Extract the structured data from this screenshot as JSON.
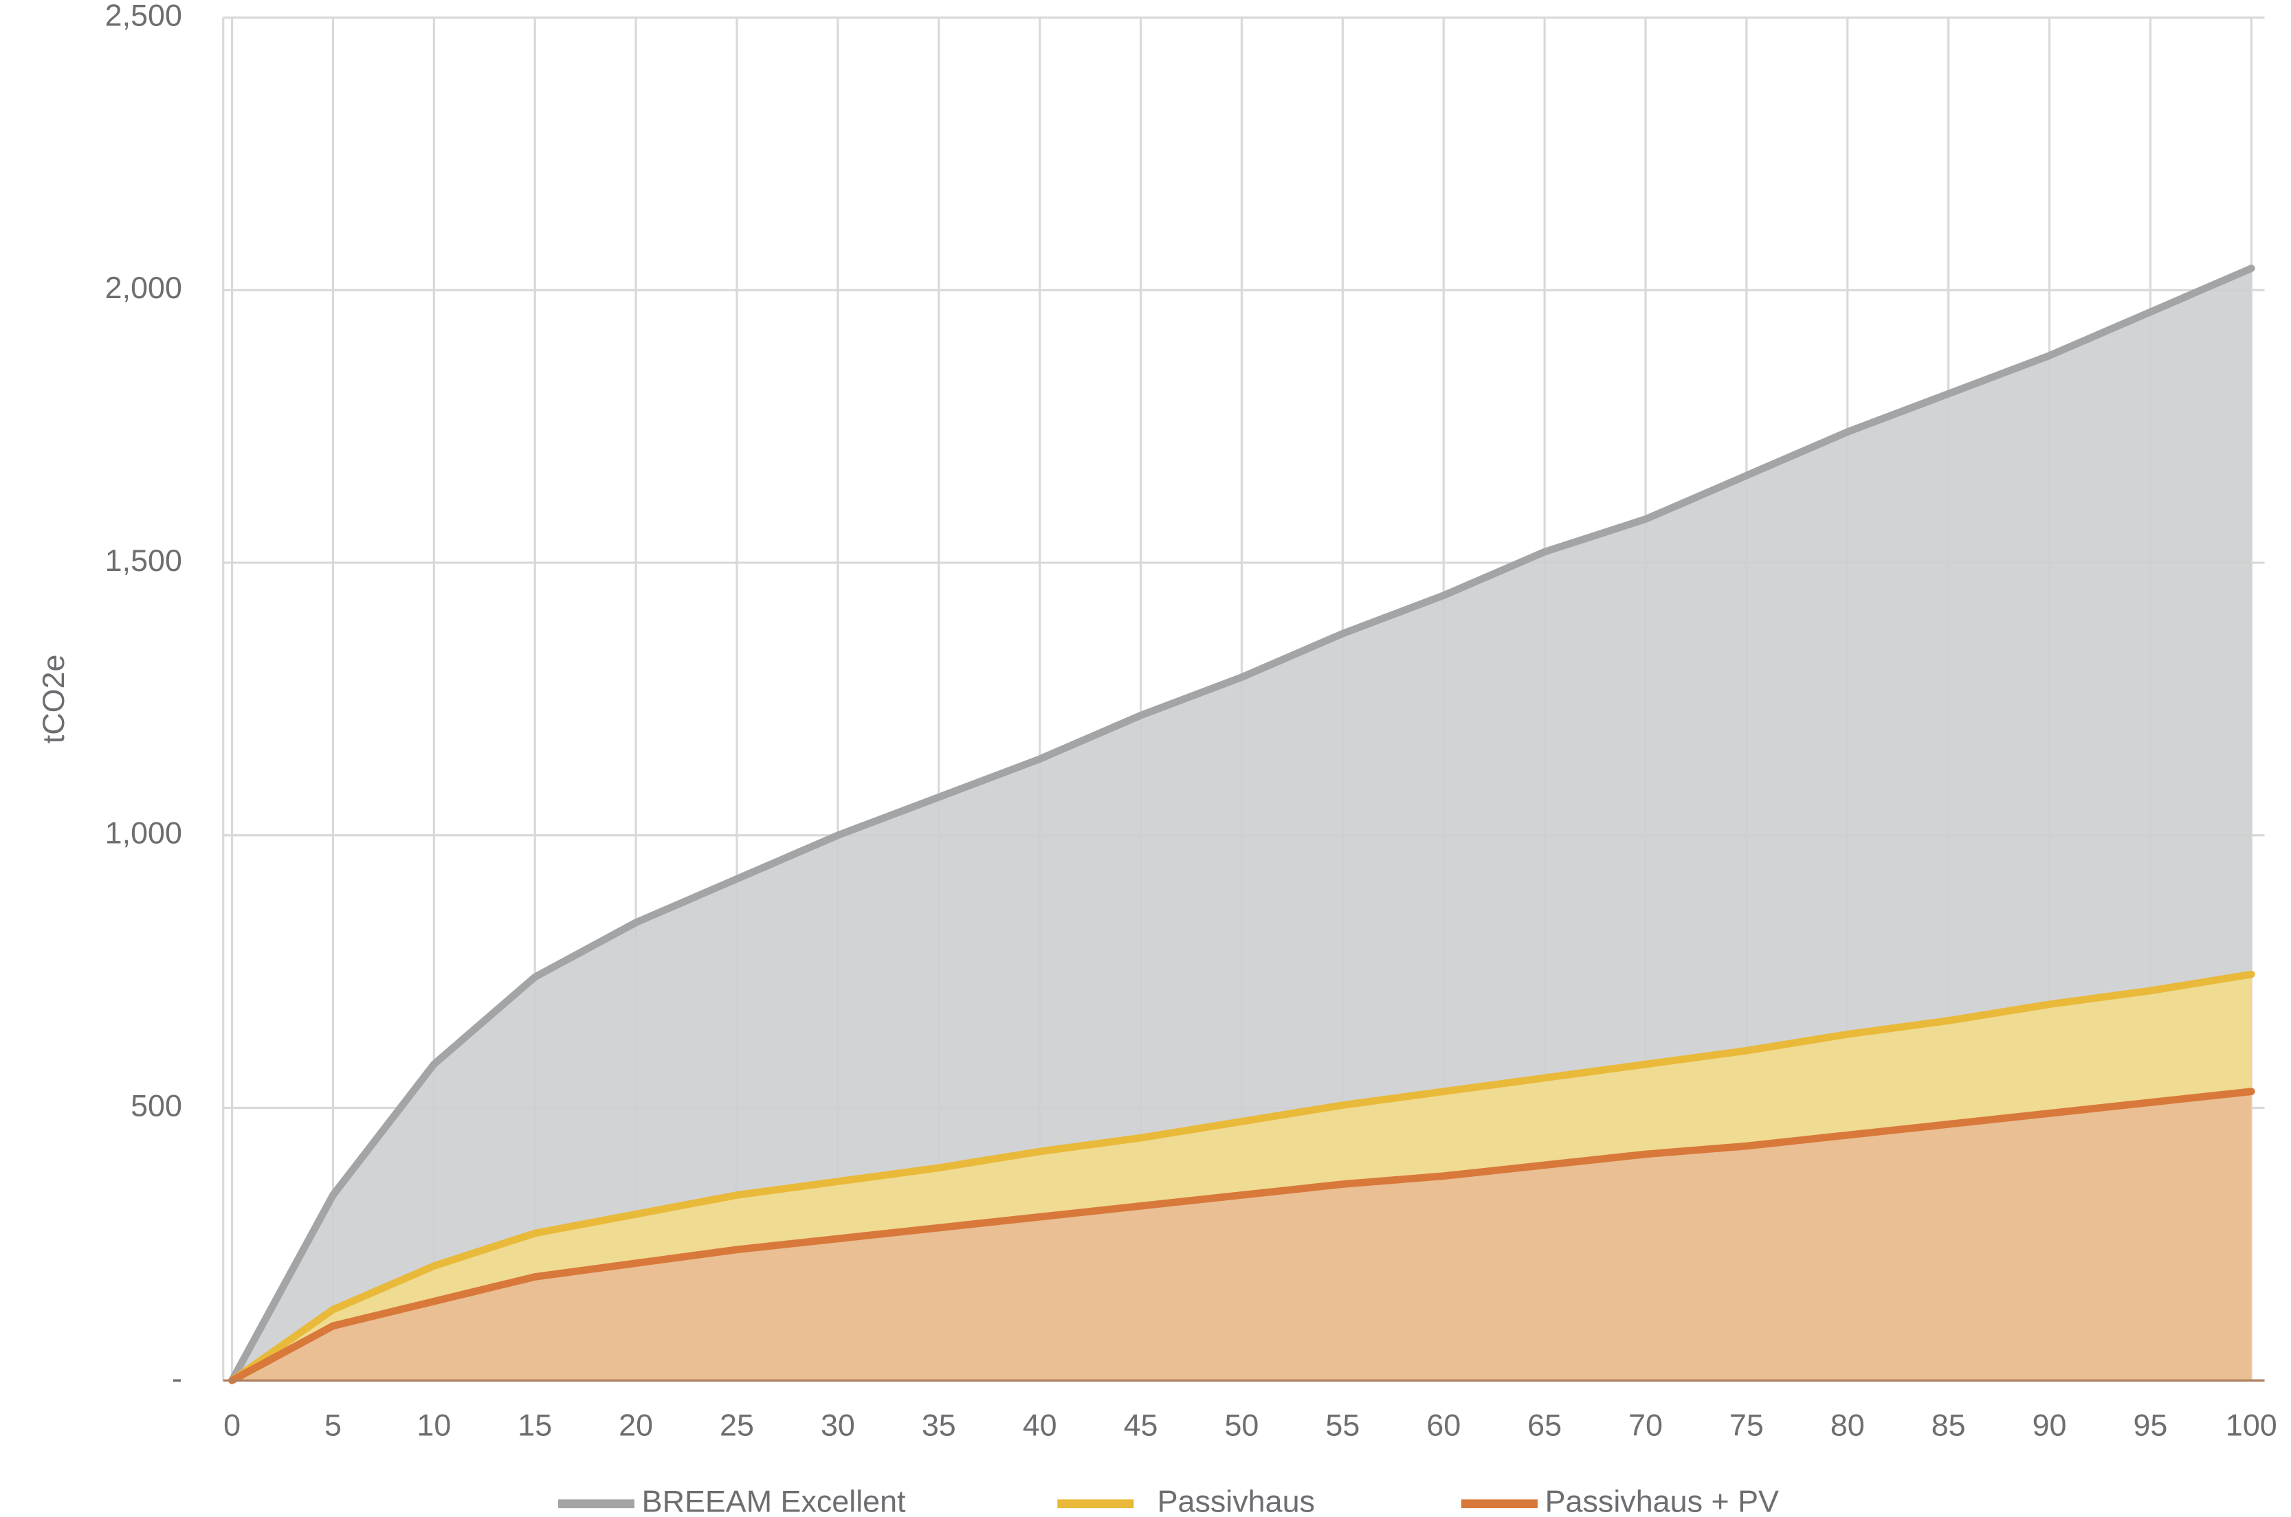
{
  "chart_data": {
    "type": "area",
    "y_label": "tCO2e",
    "x": [
      0,
      5,
      10,
      15,
      20,
      25,
      30,
      35,
      40,
      45,
      50,
      55,
      60,
      65,
      70,
      75,
      80,
      85,
      90,
      95,
      100
    ],
    "series": [
      {
        "name": "BREEAM Excellent",
        "color": "#a3a4a6",
        "fill": "#cdcecf",
        "values": [
          0,
          340,
          580,
          740,
          840,
          920,
          1000,
          1070,
          1140,
          1220,
          1290,
          1370,
          1440,
          1520,
          1580,
          1660,
          1740,
          1810,
          1880,
          1960,
          2040
        ]
      },
      {
        "name": "Passivhaus",
        "color": "#e9b93a",
        "fill": "#f2dc8a",
        "values": [
          0,
          130,
          210,
          270,
          305,
          340,
          365,
          390,
          420,
          445,
          475,
          505,
          530,
          555,
          580,
          605,
          635,
          660,
          690,
          715,
          745
        ]
      },
      {
        "name": "Passivhaus + PV",
        "color": "#d8783a",
        "fill": "#e8bb94",
        "values": [
          0,
          100,
          145,
          190,
          215,
          240,
          260,
          280,
          300,
          320,
          340,
          360,
          375,
          395,
          415,
          430,
          450,
          470,
          490,
          510,
          530
        ]
      }
    ],
    "xlim": [
      0,
      100
    ],
    "xticks": [
      0,
      5,
      10,
      15,
      20,
      25,
      30,
      35,
      40,
      45,
      50,
      55,
      60,
      65,
      70,
      75,
      80,
      85,
      90,
      95,
      100
    ],
    "ylim": [
      0,
      2500
    ],
    "yticks": [
      {
        "value": 0,
        "label": "-"
      },
      500,
      {
        "value": 1000,
        "label": "1,000"
      },
      {
        "value": 1500,
        "label": "1,500"
      },
      {
        "value": 2000,
        "label": "2,000"
      },
      {
        "value": 2500,
        "label": "2,500"
      }
    ],
    "grid": true,
    "legend": "bottom"
  }
}
